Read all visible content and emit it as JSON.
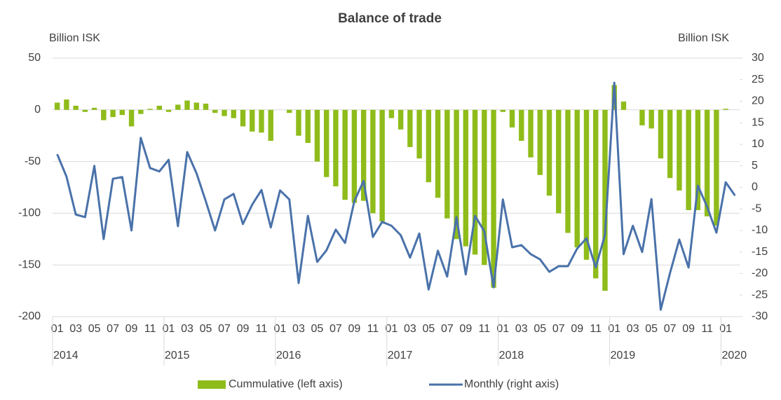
{
  "chart_data": {
    "type": "combo",
    "title": "Balance of trade",
    "y_label": "Billion ISK",
    "y2_label": "Billion ISK",
    "categories": [
      "01",
      null,
      "03",
      null,
      "05",
      null,
      "07",
      null,
      "09",
      null,
      "11",
      null,
      "01",
      null,
      "03",
      null,
      "05",
      null,
      "07",
      null,
      "09",
      null,
      "11",
      null,
      "01",
      null,
      "03",
      null,
      "05",
      null,
      "07",
      null,
      "09",
      null,
      "11",
      null,
      "01",
      null,
      "03",
      null,
      "05",
      null,
      "07",
      null,
      "09",
      null,
      "11",
      null,
      "01",
      null,
      "03",
      null,
      "05",
      null,
      "07",
      null,
      "09",
      null,
      "11",
      null,
      "01",
      null,
      "03",
      null,
      "05",
      null,
      "07",
      null,
      "09",
      null,
      "11",
      null,
      "01",
      null
    ],
    "year_labels": [
      "2014",
      "2015",
      "2016",
      "2017",
      "2018",
      "2019",
      "2020"
    ],
    "ylim": [
      -200,
      50
    ],
    "yticks": [
      -200,
      -150,
      -100,
      -50,
      0,
      50
    ],
    "y2lim": [
      -30,
      30
    ],
    "y2ticks": [
      -30,
      -25,
      -20,
      -15,
      -10,
      -5,
      0,
      5,
      10,
      15,
      20,
      25,
      30
    ],
    "grid": true,
    "legend": "bottom",
    "series": [
      {
        "name": "Cummulative (left axis)",
        "type": "bar",
        "axis": "y",
        "color": "#8fbc1a",
        "values": [
          7,
          10,
          4,
          -2,
          2,
          -10,
          -7,
          -5,
          -16,
          -4,
          1,
          4,
          -2,
          5,
          9,
          7,
          6,
          -3,
          -6,
          -8,
          -16,
          -21,
          -22,
          -30,
          0,
          -3,
          -25,
          -32,
          -50,
          -65,
          -74,
          -87,
          -90,
          -88,
          -100,
          -108,
          -8,
          -19,
          -36,
          -47,
          -70,
          -85,
          -105,
          -125,
          -132,
          -140,
          -150,
          -172,
          -2,
          -17,
          -30,
          -46,
          -63,
          -83,
          -100,
          -119,
          -133,
          -145,
          -163,
          -175,
          24,
          8,
          0,
          -15,
          -18,
          -47,
          -66,
          -78,
          -97,
          -97,
          -103,
          -112,
          1,
          null
        ]
      },
      {
        "name": "Monthly (right axis)",
        "type": "line",
        "axis": "y2",
        "color": "#4a72aa",
        "values": [
          7.7,
          2.5,
          -6.3,
          -6.9,
          5,
          -12,
          2,
          2.4,
          -10,
          11.5,
          4.5,
          3.7,
          6.4,
          -9,
          8.2,
          3.3,
          -3.2,
          -10,
          -2.8,
          -1.5,
          -8.5,
          -4,
          -0.6,
          -9.3,
          -0.7,
          -2.8,
          -22.2,
          -6.6,
          -17.3,
          -14.6,
          -9.8,
          -12.9,
          -3.2,
          1.5,
          -11.5,
          -8,
          -8.9,
          -11.1,
          -16.3,
          -10.7,
          -23.7,
          -14.7,
          -20.7,
          -6.9,
          -20.2,
          -6.6,
          -10.2,
          -23.2,
          -2.8,
          -13.9,
          -13.4,
          -15.5,
          -16.7,
          -19.6,
          -18.3,
          -18.3,
          -14.2,
          -11.8,
          -18.6,
          -11,
          24.3,
          -15.5,
          -8.9,
          -15,
          -2.7,
          -28.4,
          -19.9,
          -12.1,
          -18.6,
          0.4,
          -4.5,
          -10.5,
          1.2,
          -1.9
        ]
      }
    ]
  }
}
